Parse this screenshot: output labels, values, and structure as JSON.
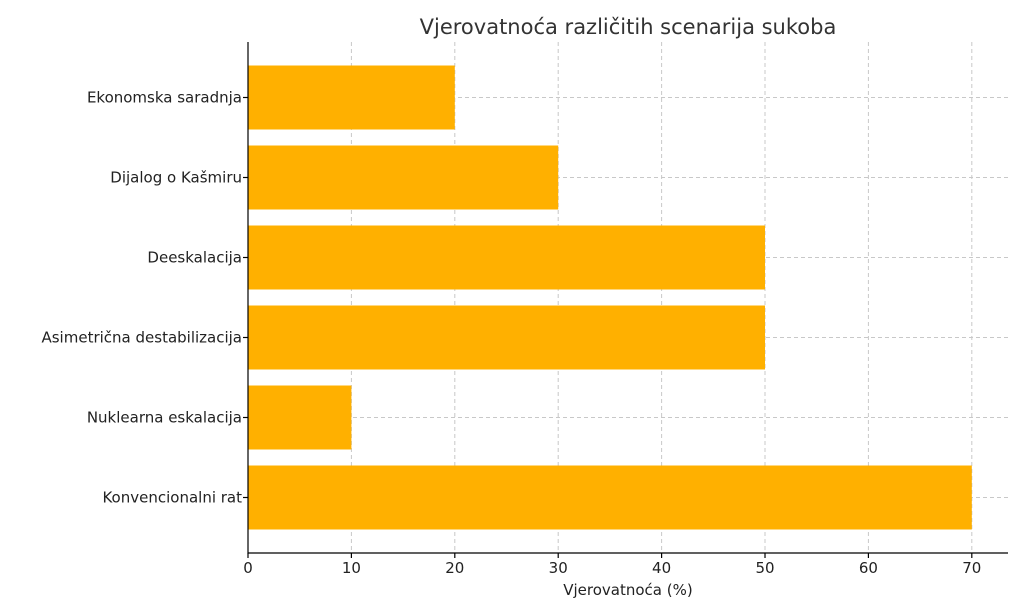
{
  "chart_data": {
    "type": "bar",
    "orientation": "horizontal",
    "title": "Vjerovatnoća različitih scenarija sukoba",
    "xlabel": "Vjerovatnoća (%)",
    "ylabel": "",
    "categories": [
      "Ekonomska saradnja",
      "Dijalog o Kašmiru",
      "Deeskalacija",
      "Asimetrična destabilizacija",
      "Nuklearna eskalacija",
      "Konvencionalni rat"
    ],
    "values": [
      20,
      30,
      50,
      50,
      10,
      70
    ],
    "xlim": [
      0,
      73.5
    ],
    "xticks": [
      0,
      10,
      20,
      30,
      40,
      50,
      60,
      70
    ],
    "grid": true,
    "bar_color": "#FFB000"
  }
}
